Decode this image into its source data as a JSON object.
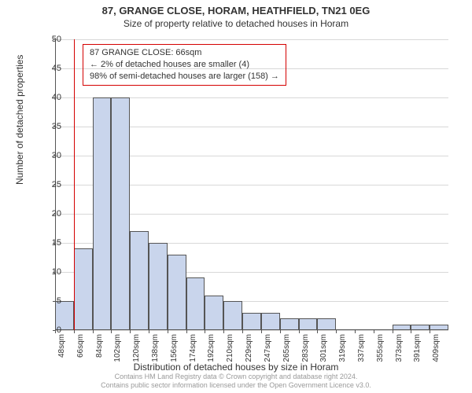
{
  "title": "87, GRANGE CLOSE, HORAM, HEATHFIELD, TN21 0EG",
  "subtitle": "Size of property relative to detached houses in Horam",
  "ylabel": "Number of detached properties",
  "xlabel": "Distribution of detached houses by size in Horam",
  "footer_line1": "Contains HM Land Registry data © Crown copyright and database right 2024.",
  "footer_line2": "Contains public sector information licensed under the Open Government Licence v3.0.",
  "chart": {
    "type": "histogram",
    "bar_fill": "#c9d5ec",
    "bar_stroke": "#555555",
    "grid_color": "#d8d8d8",
    "background": "#ffffff",
    "marker_color": "#d40000",
    "ylim": [
      0,
      50
    ],
    "ytick_step": 5,
    "x_categories": [
      "48sqm",
      "66sqm",
      "84sqm",
      "102sqm",
      "120sqm",
      "138sqm",
      "156sqm",
      "174sqm",
      "192sqm",
      "210sqm",
      "229sqm",
      "247sqm",
      "265sqm",
      "283sqm",
      "301sqm",
      "319sqm",
      "337sqm",
      "355sqm",
      "373sqm",
      "391sqm",
      "409sqm"
    ],
    "values": [
      5,
      14,
      40,
      40,
      17,
      15,
      13,
      9,
      6,
      5,
      3,
      3,
      2,
      2,
      2,
      0,
      0,
      0,
      1,
      1,
      1
    ],
    "marker_index": 1,
    "annotation": {
      "lines": [
        "87 GRANGE CLOSE: 66sqm",
        "← 2% of detached houses are smaller (4)",
        "98% of semi-detached houses are larger (158) →"
      ],
      "border_color": "#d40000"
    }
  }
}
